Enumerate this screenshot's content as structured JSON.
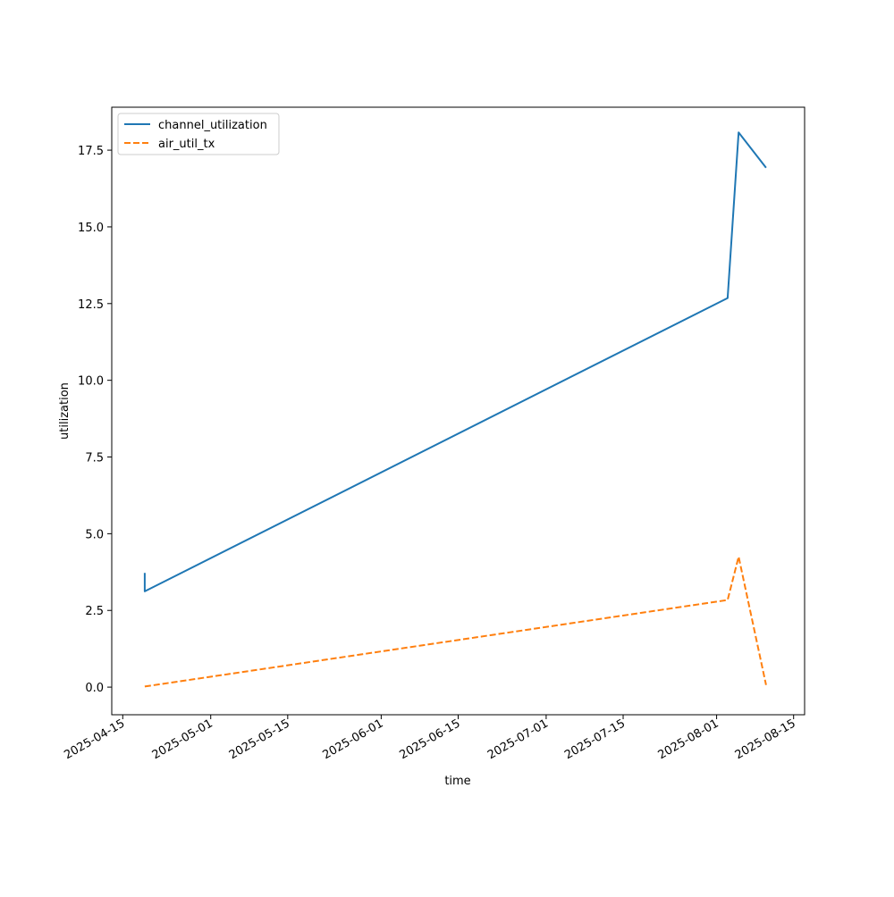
{
  "chart_data": {
    "type": "line",
    "title": "",
    "xlabel": "time",
    "ylabel": "utilization",
    "x_type": "date",
    "xlim": [
      "2025-04-13",
      "2025-08-17"
    ],
    "ylim": [
      -0.9,
      18.9
    ],
    "x_ticks": [
      "2025-04-15",
      "2025-05-01",
      "2025-05-15",
      "2025-06-01",
      "2025-06-15",
      "2025-07-01",
      "2025-07-15",
      "2025-08-01",
      "2025-08-15"
    ],
    "y_ticks": [
      0.0,
      2.5,
      5.0,
      7.5,
      10.0,
      12.5,
      15.0,
      17.5
    ],
    "y_tick_labels": [
      "0.0",
      "2.5",
      "5.0",
      "7.5",
      "10.0",
      "12.5",
      "15.0",
      "17.5"
    ],
    "grid": false,
    "legend_position": "top-left",
    "series": [
      {
        "name": "channel_utilization",
        "color": "#1f77b4",
        "dash": "solid",
        "points": [
          {
            "x": "2025-04-19",
            "y": 3.72
          },
          {
            "x": "2025-04-19",
            "y": 3.12
          },
          {
            "x": "2025-08-03",
            "y": 12.68
          },
          {
            "x": "2025-08-05",
            "y": 18.08
          },
          {
            "x": "2025-08-10",
            "y": 16.93
          }
        ]
      },
      {
        "name": "air_util_tx",
        "color": "#ff7f0e",
        "dash": "dashed",
        "points": [
          {
            "x": "2025-04-19",
            "y": 0.02
          },
          {
            "x": "2025-08-03",
            "y": 2.84
          },
          {
            "x": "2025-08-05",
            "y": 4.25
          },
          {
            "x": "2025-08-10",
            "y": 0.07
          }
        ]
      }
    ]
  }
}
